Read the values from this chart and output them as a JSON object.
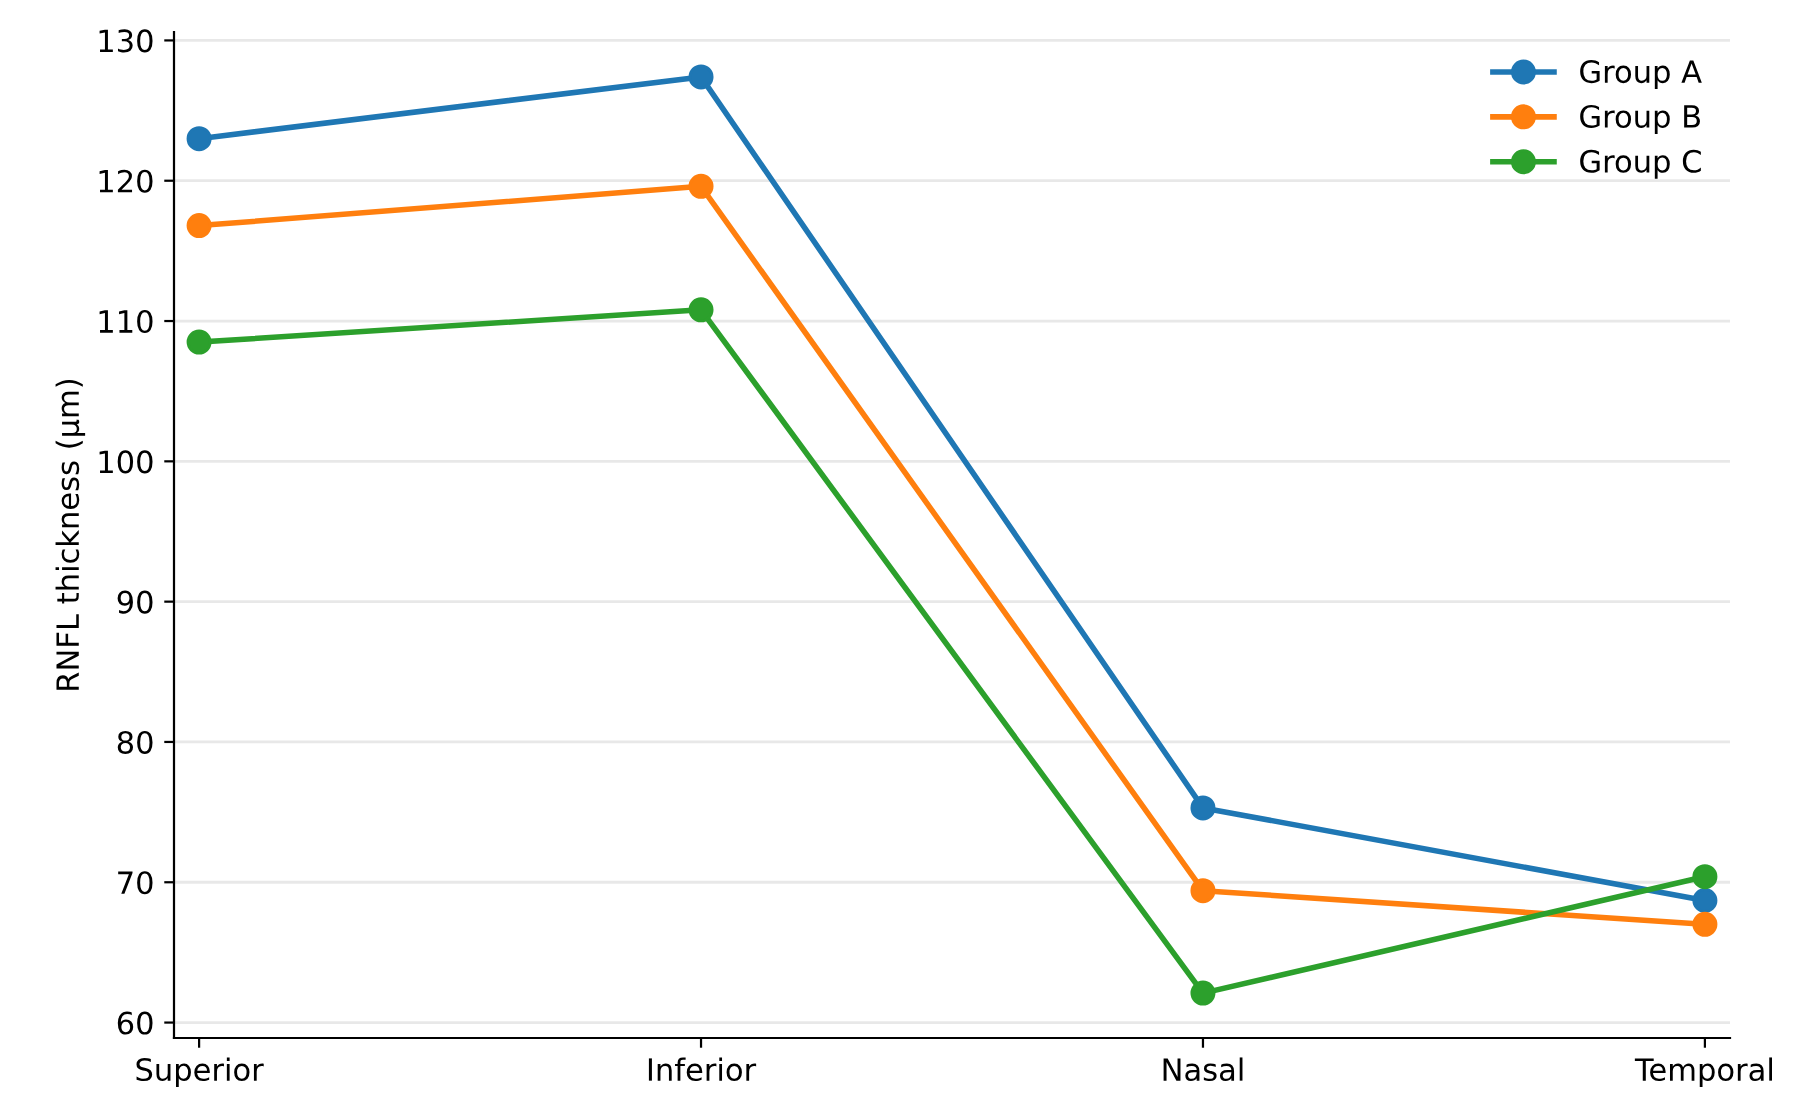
{
  "chart_data": {
    "type": "line",
    "ylabel": "RNFL thickness (µm)",
    "categories": [
      "Superior",
      "Inferior",
      "Nasal",
      "Temporal"
    ],
    "series": [
      {
        "name": "Group A",
        "color": "#1f77b4",
        "values": [
          123.0,
          127.4,
          75.3,
          68.7
        ]
      },
      {
        "name": "Group B",
        "color": "#ff7f0e",
        "values": [
          116.8,
          119.6,
          69.4,
          67.0
        ]
      },
      {
        "name": "Group C",
        "color": "#2ca02c",
        "values": [
          108.5,
          110.8,
          62.1,
          70.4
        ]
      }
    ],
    "ylim": [
      58.9,
      130.6
    ],
    "yticks": [
      60,
      70,
      80,
      90,
      100,
      110,
      120,
      130
    ],
    "grid": "y",
    "legend": "top right",
    "marker": "circle",
    "line_style": "solid"
  }
}
